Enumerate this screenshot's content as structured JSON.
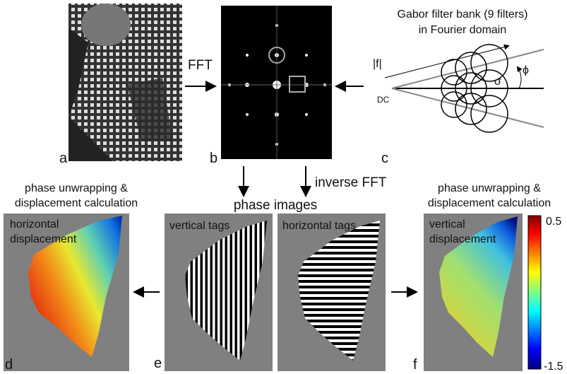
{
  "panels": {
    "a": "a",
    "b": "b",
    "c": "c",
    "d": "d",
    "e": "e",
    "f": "f"
  },
  "arrows": {
    "fft": "FFT",
    "inverse_fft": "inverse FFT",
    "phase_images": "phase images"
  },
  "gabor": {
    "title": "Gabor filter bank (9 filters)",
    "subtitle": "in Fourier domain",
    "f_label": "|f|",
    "dc_label": "DC",
    "sigma_label": "σ",
    "phi_label": "ϕ"
  },
  "left_caption": {
    "line1": "phase unwrapping &",
    "line2": "displacement calculation"
  },
  "right_caption": {
    "line1": "phase unwrapping &",
    "line2": "displacement calculation"
  },
  "images": {
    "d": {
      "line1": "horizontal",
      "line2": "displacement"
    },
    "e": "vertical tags",
    "e2": "horizontal tags",
    "f": {
      "line1": "vertical",
      "line2": "displacement"
    }
  },
  "colorbar": {
    "max": 0.5,
    "min": -1.5
  }
}
